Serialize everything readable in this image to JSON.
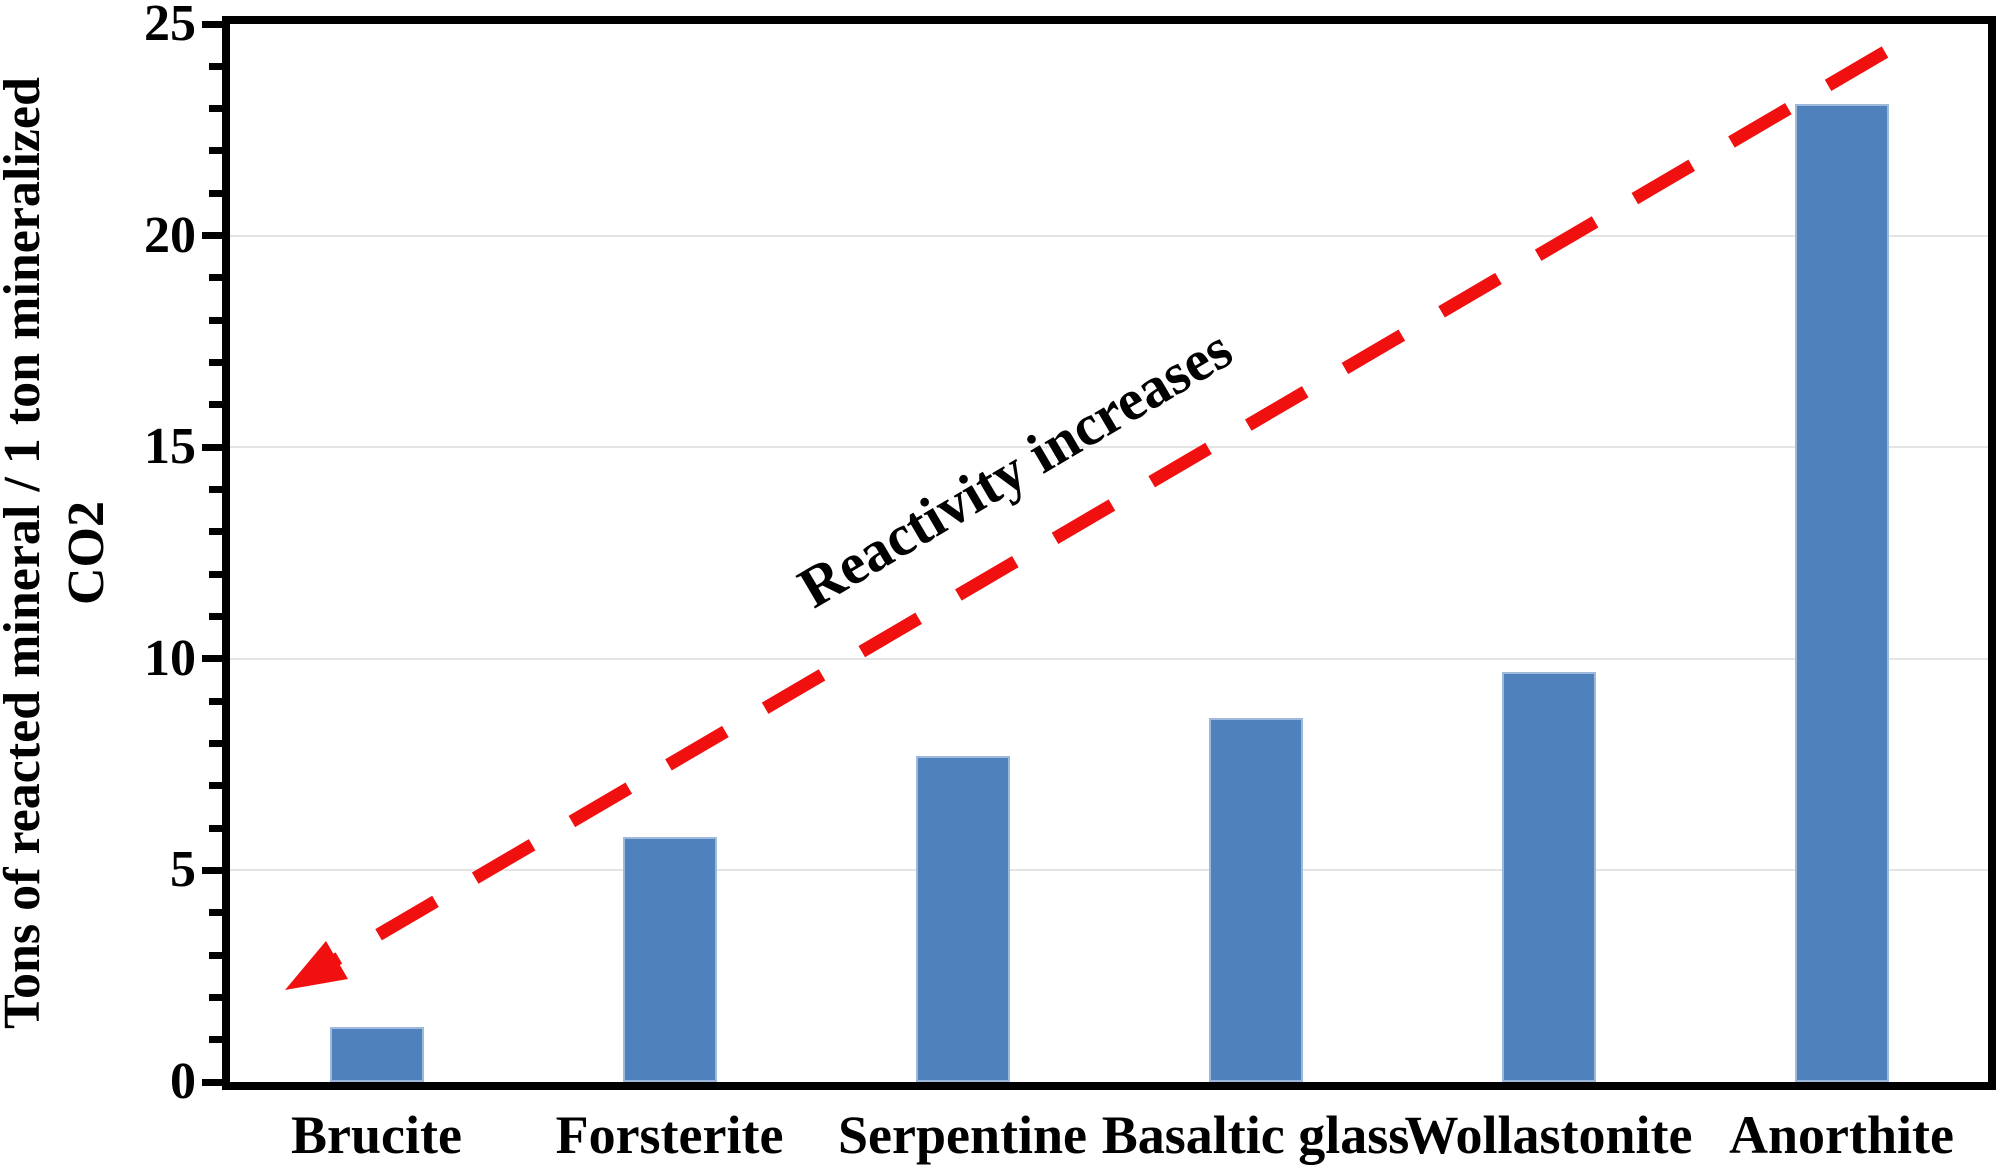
{
  "chart_data": {
    "type": "bar",
    "title": "",
    "categories": [
      "Brucite",
      "Forsterite",
      "Serpentine",
      "Basaltic glass",
      "Wollastonite",
      "Anorthite"
    ],
    "values": [
      1.3,
      5.8,
      7.7,
      8.6,
      9.7,
      23.1
    ],
    "xlabel": "",
    "ylabel": "Tons of reacted mineral / 1 ton mineralized CO2",
    "ylabel_lines": [
      "Tons of reacted mineral / 1 ton mineralized",
      "CO2"
    ],
    "ylim": [
      0,
      25
    ],
    "yticks": [
      0,
      5,
      10,
      15,
      20,
      25
    ],
    "minor_tick_interval": 1,
    "gridlines": {
      "horizontal_at": [
        5,
        10,
        15,
        20
      ],
      "color": "#e4e4e4"
    },
    "legend": "none",
    "bar_color": "#4f81bd",
    "bar_border_color": "#9fb9dc",
    "axis_color": "#000000",
    "annotation": {
      "text": "Reactivity increases",
      "arrow_style": "dashed",
      "arrow_color": "#f01010",
      "arrow_from": "upper right above Anorthite bar",
      "arrow_to": "lower left above Brucite bar (arrowhead points down-left)"
    }
  }
}
